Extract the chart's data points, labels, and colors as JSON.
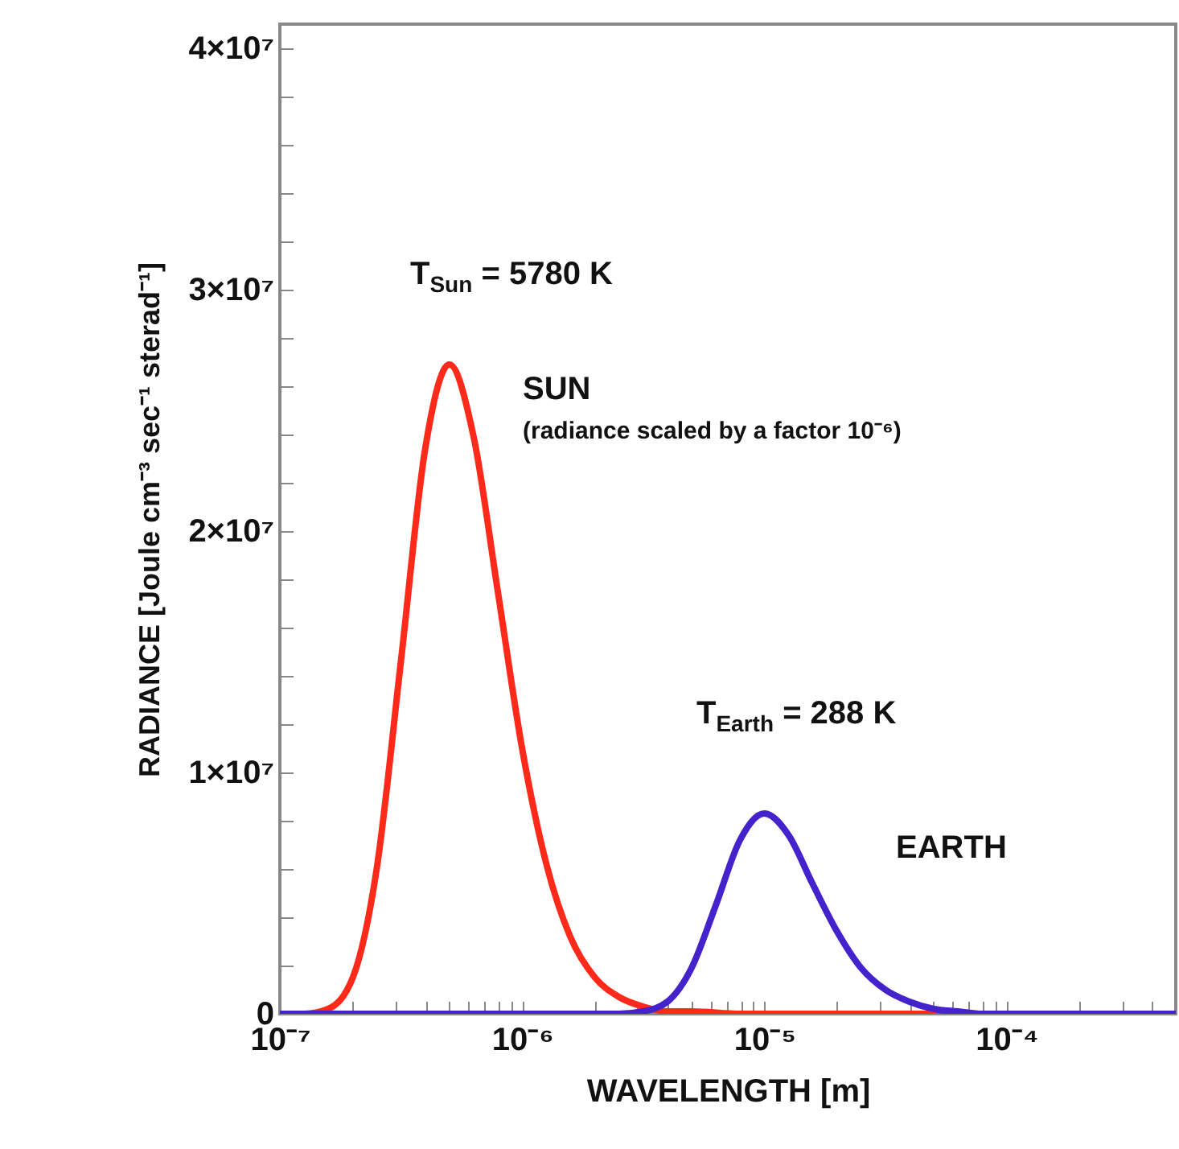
{
  "chart_data": {
    "type": "line",
    "xlabel": "WAVELENGTH [m]",
    "ylabel": "RADIANCE [Joule cm⁻³ sec⁻¹ sterad⁻¹]",
    "log": "x",
    "grid": false,
    "xlim": [
      1e-07,
      0.0005
    ],
    "xticks": [
      {
        "value": 1e-07,
        "label": "10⁻⁷"
      },
      {
        "value": 2e-07,
        "label": null
      },
      {
        "value": 3e-07,
        "label": null
      },
      {
        "value": 4e-07,
        "label": null
      },
      {
        "value": 5e-07,
        "label": null
      },
      {
        "value": 6e-07,
        "label": null
      },
      {
        "value": 7e-07,
        "label": null
      },
      {
        "value": 8e-07,
        "label": null
      },
      {
        "value": 9e-07,
        "label": null
      },
      {
        "value": 1e-06,
        "label": "10⁻⁶"
      },
      {
        "value": 2e-06,
        "label": null
      },
      {
        "value": 3e-06,
        "label": null
      },
      {
        "value": 4e-06,
        "label": null
      },
      {
        "value": 5e-06,
        "label": null
      },
      {
        "value": 6e-06,
        "label": null
      },
      {
        "value": 7e-06,
        "label": null
      },
      {
        "value": 8e-06,
        "label": null
      },
      {
        "value": 9e-06,
        "label": null
      },
      {
        "value": 1e-05,
        "label": "10⁻⁵"
      },
      {
        "value": 2e-05,
        "label": null
      },
      {
        "value": 3e-05,
        "label": null
      },
      {
        "value": 4e-05,
        "label": null
      },
      {
        "value": 5e-05,
        "label": null
      },
      {
        "value": 6e-05,
        "label": null
      },
      {
        "value": 7e-05,
        "label": null
      },
      {
        "value": 8e-05,
        "label": null
      },
      {
        "value": 9e-05,
        "label": null
      },
      {
        "value": 0.0001,
        "label": "10⁻⁴"
      },
      {
        "value": 0.0002,
        "label": null
      },
      {
        "value": 0.0003,
        "label": null
      },
      {
        "value": 0.0004,
        "label": null
      }
    ],
    "ylim": [
      0,
      41000000.0
    ],
    "yticks": [
      {
        "value": 0,
        "label": "0"
      },
      {
        "value": 2000000.0,
        "label": null
      },
      {
        "value": 4000000.0,
        "label": null
      },
      {
        "value": 6000000.0,
        "label": null
      },
      {
        "value": 8000000.0,
        "label": null
      },
      {
        "value": 10000000.0,
        "label": "1×10⁷"
      },
      {
        "value": 12000000.0,
        "label": null
      },
      {
        "value": 14000000.0,
        "label": null
      },
      {
        "value": 16000000.0,
        "label": null
      },
      {
        "value": 18000000.0,
        "label": null
      },
      {
        "value": 20000000.0,
        "label": "2×10⁷"
      },
      {
        "value": 22000000.0,
        "label": null
      },
      {
        "value": 24000000.0,
        "label": null
      },
      {
        "value": 26000000.0,
        "label": null
      },
      {
        "value": 28000000.0,
        "label": null
      },
      {
        "value": 30000000.0,
        "label": "3×10⁷"
      },
      {
        "value": 32000000.0,
        "label": null
      },
      {
        "value": 34000000.0,
        "label": null
      },
      {
        "value": 36000000.0,
        "label": null
      },
      {
        "value": 38000000.0,
        "label": null
      },
      {
        "value": 40000000.0,
        "label": "4×10⁷"
      }
    ],
    "series": [
      {
        "color": "#ff2a1a",
        "x": [
          1e-07,
          1.26e-07,
          1.58e-07,
          2e-07,
          2.51e-07,
          3.16e-07,
          3.98e-07,
          5.01e-07,
          6.31e-07,
          7.94e-07,
          1e-06,
          1.26e-06,
          1.58e-06,
          2e-06,
          2.51e-06,
          3.16e-06,
          3.98e-06,
          5.01e-06,
          7.94e-06,
          0.0005
        ],
        "values": [
          0,
          0,
          200000,
          1500000,
          6000000,
          14600000,
          23400000,
          26900000,
          23900000,
          17500000,
          11000000,
          6200000,
          3200000,
          1500000,
          700000,
          300000,
          100000,
          100000,
          0,
          0
        ]
      },
      {
        "color": "#4422cc",
        "x": [
          1e-07,
          2.51e-06,
          3.16e-06,
          3.98e-06,
          5.01e-06,
          6.31e-06,
          7.94e-06,
          1e-05,
          1.26e-05,
          1.58e-05,
          2e-05,
          2.51e-05,
          3.16e-05,
          3.98e-05,
          5.01e-05,
          6.31e-05,
          7.94e-05,
          0.0001,
          0.000158,
          0.0005
        ],
        "values": [
          0,
          0,
          100000,
          500000,
          1900000,
          4500000,
          7200000,
          8300000,
          7400000,
          5400000,
          3400000,
          1900000,
          1000000,
          500000,
          200000,
          100000,
          0,
          0,
          0,
          0
        ]
      }
    ],
    "annotations": [
      "T$_{Sun}$ =  5780 K",
      "SUN",
      "(radiance scaled by a factor 10⁻⁶)",
      "T$_{Earth}$ =  288 K",
      "EARTH"
    ]
  }
}
